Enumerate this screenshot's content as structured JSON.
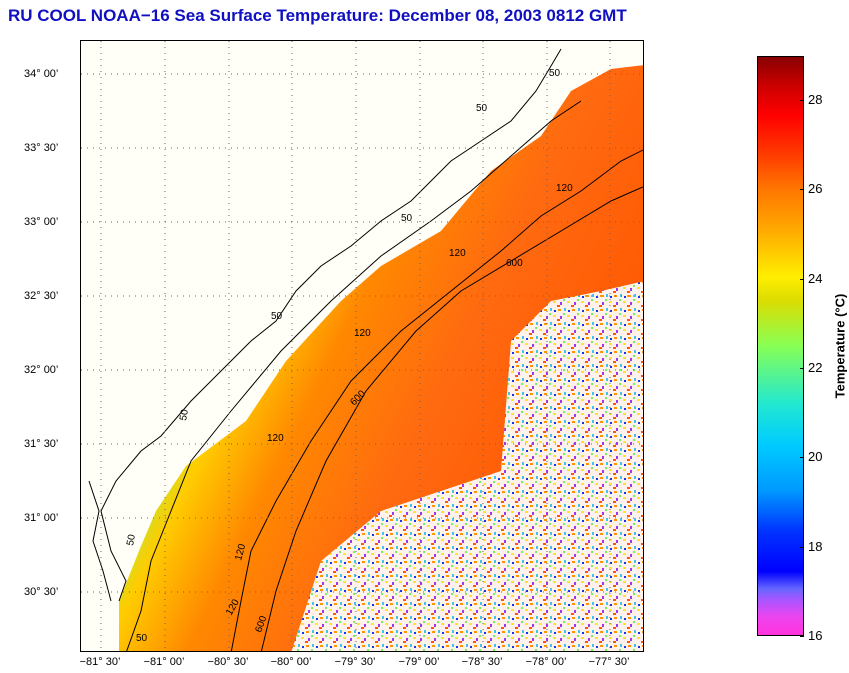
{
  "title": "RU COOL  NOAA−16  Sea Surface Temperature:  December 08, 2003 0812 GMT",
  "map": {
    "lat_labels": [
      "34° 00’",
      "33° 30’",
      "33° 00’",
      "32° 30’",
      "32° 00’",
      "31° 30’",
      "31° 00’",
      "30° 30’"
    ],
    "lon_labels": [
      "−81° 30’",
      "−81° 00’",
      "−80° 30’",
      "−80° 00’",
      "−79° 30’",
      "−79° 00’",
      "−78° 30’",
      "−78° 00’",
      "−77° 30’"
    ],
    "isobath_labels": [
      "50",
      "50",
      "50",
      "50",
      "50",
      "50",
      "50",
      "120",
      "120",
      "120",
      "120",
      "120",
      "120",
      "600",
      "600",
      "600"
    ]
  },
  "colorbar": {
    "label": "Temperature (°C)",
    "ticks": [
      "28",
      "26",
      "24",
      "22",
      "20",
      "18",
      "16"
    ],
    "min": 16,
    "max": 29
  },
  "colors": {
    "title": "#1010c0",
    "land": "#fffff7",
    "contour": "#000000"
  }
}
